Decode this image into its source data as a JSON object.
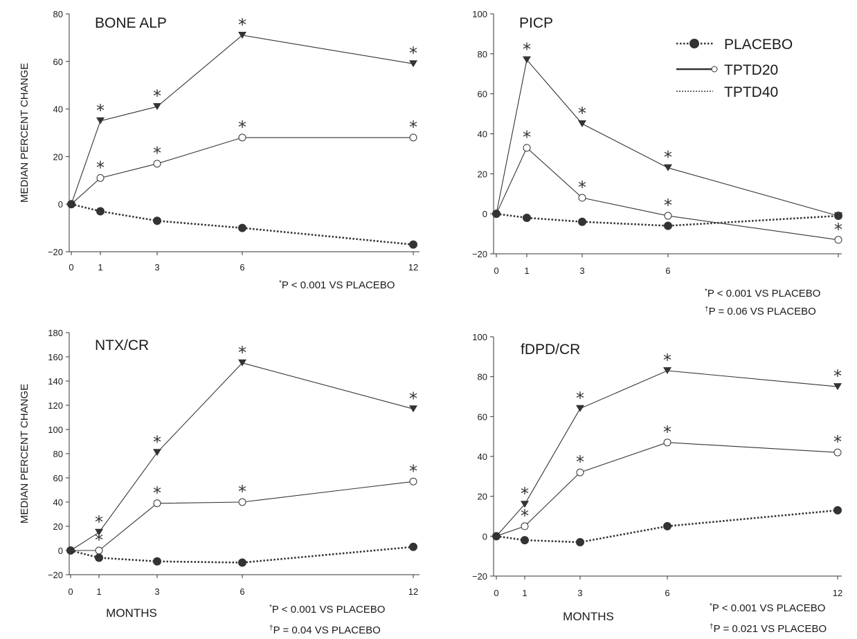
{
  "colors": {
    "ink": "#333333",
    "text": "#1a1a1a",
    "background": "#ffffff"
  },
  "legend": {
    "placement": "top-right of PICP panel",
    "entries": [
      {
        "label": "PLACEBO",
        "marker": "filled-circle",
        "line": "dotted-thick"
      },
      {
        "label": "TPTD20",
        "marker": "open-circle",
        "line": "solid-thick"
      },
      {
        "label": "TPTD40",
        "marker": "none",
        "line": "dotted-thin"
      }
    ]
  },
  "chart_data": [
    {
      "type": "line",
      "title": "BONE ALP",
      "ylabel": "MEDIAN PERCENT CHANGE",
      "xlabel": "",
      "x": [
        0,
        1,
        3,
        6,
        12
      ],
      "xticks": [
        "0",
        "1",
        "3",
        "6",
        "12"
      ],
      "ylim": [
        -20,
        80
      ],
      "yticks": [
        "80",
        "60",
        "40",
        "20",
        "0",
        "−20"
      ],
      "series": [
        {
          "name": "PLACEBO",
          "marker": "filled-circle",
          "x": [
            0,
            1,
            3,
            6,
            12
          ],
          "values": [
            0,
            -3,
            -7,
            -10,
            -17
          ]
        },
        {
          "name": "TPTD20",
          "marker": "open-circle",
          "x": [
            0,
            1,
            3,
            6,
            12
          ],
          "values": [
            0,
            11,
            17,
            28,
            28
          ],
          "stars": [
            1,
            3,
            6,
            12
          ]
        },
        {
          "name": "TPTD40",
          "marker": "down-triangle",
          "x": [
            0,
            1,
            3,
            6,
            12
          ],
          "values": [
            0,
            35,
            41,
            71,
            59
          ],
          "stars": [
            1,
            3,
            6,
            12
          ]
        }
      ],
      "footnotes": [
        {
          "mark": "*",
          "text": "P < 0.001 VS PLACEBO"
        }
      ]
    },
    {
      "type": "line",
      "title": "PICP",
      "ylabel": "",
      "xlabel": "",
      "x": [
        0,
        1,
        3,
        6,
        12
      ],
      "xticks": [
        "0",
        "1",
        "3",
        "6",
        ""
      ],
      "ylim": [
        -20,
        100
      ],
      "yticks": [
        "100",
        "80",
        "60",
        "40",
        "20",
        "0",
        "−20"
      ],
      "series": [
        {
          "name": "PLACEBO",
          "marker": "filled-circle",
          "x": [
            0,
            1,
            3,
            6,
            12
          ],
          "values": [
            0,
            -2,
            -4,
            -6,
            -1
          ]
        },
        {
          "name": "TPTD20",
          "marker": "open-circle",
          "x": [
            0,
            1,
            3,
            6,
            12
          ],
          "values": [
            0,
            33,
            8,
            -1,
            -13
          ],
          "stars": [
            1,
            3,
            6,
            12
          ]
        },
        {
          "name": "TPTD40",
          "marker": "down-triangle",
          "x": [
            0,
            1,
            3,
            6,
            12
          ],
          "values": [
            0,
            77,
            45,
            23,
            -1
          ],
          "stars": [
            1,
            3,
            6
          ]
        }
      ],
      "footnotes": [
        {
          "mark": "*",
          "text": "P < 0.001 VS PLACEBO"
        },
        {
          "mark": "†",
          "text": "P = 0.06 VS PLACEBO"
        }
      ]
    },
    {
      "type": "line",
      "title": "NTX/CR",
      "ylabel": "MEDIAN PERCENT CHANGE",
      "xlabel": "MONTHS",
      "x": [
        0,
        1,
        3,
        6,
        12
      ],
      "xticks": [
        "0",
        "1",
        "3",
        "6",
        "12"
      ],
      "ylim": [
        -20,
        180
      ],
      "yticks": [
        "180",
        "160",
        "140",
        "120",
        "100",
        "80",
        "60",
        "40",
        "20",
        "0",
        "−20"
      ],
      "series": [
        {
          "name": "PLACEBO",
          "marker": "filled-circle",
          "x": [
            0,
            1,
            3,
            6,
            12
          ],
          "values": [
            0,
            -6,
            -9,
            -10,
            3
          ]
        },
        {
          "name": "TPTD20",
          "marker": "open-circle",
          "x": [
            0,
            1,
            3,
            6,
            12
          ],
          "values": [
            0,
            0,
            39,
            40,
            57
          ],
          "stars": [
            1,
            3,
            6,
            12
          ]
        },
        {
          "name": "TPTD40",
          "marker": "down-triangle",
          "x": [
            0,
            1,
            3,
            6,
            12
          ],
          "values": [
            0,
            15,
            81,
            155,
            117
          ],
          "stars": [
            1,
            3,
            6,
            12
          ]
        }
      ],
      "footnotes": [
        {
          "mark": "*",
          "text": "P < 0.001 VS PLACEBO"
        },
        {
          "mark": "†",
          "text": "P = 0.04 VS PLACEBO"
        }
      ]
    },
    {
      "type": "line",
      "title": "fDPD/CR",
      "ylabel": "",
      "xlabel": "MONTHS",
      "x": [
        0,
        1,
        3,
        6,
        12
      ],
      "xticks": [
        "0",
        "1",
        "3",
        "6",
        "12"
      ],
      "ylim": [
        -20,
        100
      ],
      "yticks": [
        "100",
        "80",
        "60",
        "40",
        "20",
        "0",
        "−20"
      ],
      "series": [
        {
          "name": "PLACEBO",
          "marker": "filled-circle",
          "x": [
            0,
            1,
            3,
            6,
            12
          ],
          "values": [
            0,
            -2,
            -3,
            5,
            13
          ]
        },
        {
          "name": "TPTD20",
          "marker": "open-circle",
          "x": [
            0,
            1,
            3,
            6,
            12
          ],
          "values": [
            0,
            5,
            32,
            47,
            42
          ],
          "stars": [
            1,
            3,
            6,
            12
          ]
        },
        {
          "name": "TPTD40",
          "marker": "down-triangle",
          "x": [
            0,
            1,
            3,
            6,
            12
          ],
          "values": [
            0,
            16,
            64,
            83,
            75
          ],
          "stars": [
            1,
            3,
            6,
            12
          ]
        }
      ],
      "footnotes": [
        {
          "mark": "*",
          "text": "P < 0.001 VS PLACEBO"
        },
        {
          "mark": "†",
          "text": "P = 0.021 VS PLACEBO"
        }
      ]
    }
  ]
}
